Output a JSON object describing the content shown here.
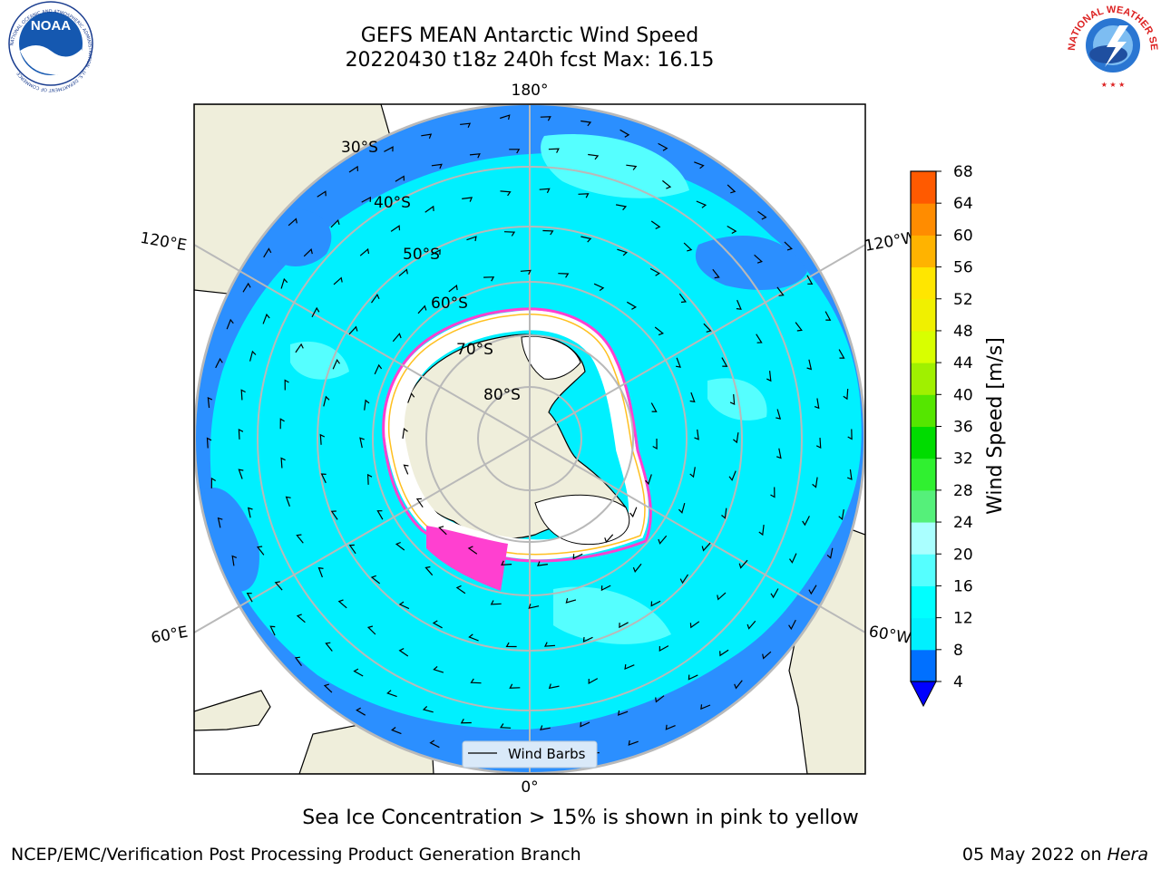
{
  "title": {
    "line1": "GEFS MEAN Antarctic Wind Speed",
    "line2": "20220430 t18z 240h fcst   Max: 16.15"
  },
  "map": {
    "projection": "south-polar-stereographic",
    "longitude_labels": {
      "top": "180°",
      "upper_left": "120°E",
      "upper_right": "120°W",
      "lower_left": "60°E",
      "lower_right": "60°W",
      "bottom": "0°"
    },
    "latitude_labels": [
      "30°S",
      "40°S",
      "50°S",
      "60°S",
      "70°S",
      "80°S"
    ],
    "colors": {
      "land": "#efeedb",
      "ocean_low": "#2b8fff",
      "ocean_mid": "#00f0ff",
      "ocean_light": "#55ffff",
      "ice": "#ffffff",
      "ice_edge": "#ff40d0",
      "grid": "#b9b9b9",
      "no_data": "#ffffff"
    },
    "legend": {
      "label": "Wind Barbs"
    }
  },
  "colorbar": {
    "label": "Wind Speed [m/s]",
    "ticks": [
      "4",
      "8",
      "12",
      "16",
      "20",
      "24",
      "28",
      "32",
      "36",
      "40",
      "44",
      "48",
      "52",
      "56",
      "60",
      "64",
      "68"
    ],
    "colors": [
      "#0070ff",
      "#00f0ff",
      "#00ffff",
      "#55ffff",
      "#aaffff",
      "#55f07a",
      "#30f030",
      "#00dc00",
      "#55e600",
      "#a0f000",
      "#d8ff00",
      "#f0f000",
      "#ffe600",
      "#ffb300",
      "#ff8c00",
      "#ff5a00",
      "#ff2600",
      "#ff0000"
    ],
    "extend_color": "#0000ff"
  },
  "caption": "Sea Ice Concentration > 15% is shown in pink to yellow",
  "footer": {
    "left": "NCEP/EMC/Verification Post Processing Product Generation Branch",
    "date": "05 May 2022 on ",
    "machine": "Hera"
  },
  "logos": {
    "left": {
      "text": "NOAA",
      "ring": "NATIONAL OCEANIC AND ATMOSPHERIC ADMINISTRATION · U.S. DEPARTMENT OF COMMERCE"
    },
    "right": {
      "ring": "NATIONAL WEATHER SERVICE"
    }
  }
}
